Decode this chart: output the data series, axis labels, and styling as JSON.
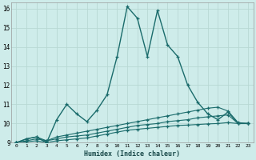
{
  "xlabel": "Humidex (Indice chaleur)",
  "bg_color": "#ceecea",
  "grid_color": "#b8d8d4",
  "line_color": "#1a6b6b",
  "xlim": [
    -0.5,
    23.5
  ],
  "ylim": [
    9,
    16.3
  ],
  "xtick_labels": [
    "0",
    "1",
    "2",
    "3",
    "4",
    "5",
    "6",
    "7",
    "8",
    "9",
    "10",
    "11",
    "12",
    "13",
    "14",
    "15",
    "16",
    "17",
    "18",
    "19",
    "20",
    "21",
    "22",
    "23"
  ],
  "ytick_labels": [
    "9",
    "10",
    "11",
    "12",
    "13",
    "14",
    "15",
    "16"
  ],
  "series": [
    [
      9.0,
      9.2,
      9.3,
      9.0,
      10.2,
      11.0,
      10.5,
      10.1,
      10.7,
      11.5,
      13.5,
      16.1,
      15.5,
      13.5,
      15.9,
      14.1,
      13.5,
      12.0,
      11.1,
      10.5,
      10.2,
      10.6,
      10.0,
      10.0
    ],
    [
      9.0,
      9.2,
      9.3,
      9.1,
      9.3,
      9.4,
      9.5,
      9.6,
      9.7,
      9.8,
      9.9,
      10.0,
      10.1,
      10.2,
      10.3,
      10.4,
      10.5,
      10.6,
      10.7,
      10.8,
      10.85,
      10.65,
      10.05,
      10.0
    ],
    [
      9.0,
      9.1,
      9.2,
      9.1,
      9.2,
      9.3,
      9.35,
      9.4,
      9.5,
      9.6,
      9.7,
      9.8,
      9.9,
      9.95,
      10.0,
      10.1,
      10.15,
      10.2,
      10.3,
      10.35,
      10.4,
      10.45,
      10.0,
      10.0
    ],
    [
      9.0,
      9.05,
      9.1,
      9.0,
      9.1,
      9.15,
      9.2,
      9.25,
      9.35,
      9.45,
      9.55,
      9.65,
      9.7,
      9.75,
      9.8,
      9.85,
      9.9,
      9.92,
      9.95,
      9.98,
      10.0,
      10.05,
      10.0,
      10.0
    ]
  ]
}
